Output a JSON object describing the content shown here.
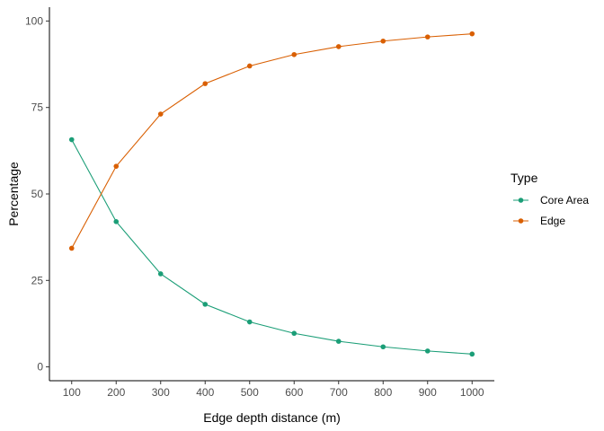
{
  "chart_data": {
    "type": "line",
    "xlabel": "Edge depth distance (m)",
    "ylabel": "Percentage",
    "x": [
      100,
      200,
      300,
      400,
      500,
      600,
      700,
      800,
      900,
      1000
    ],
    "xticks": [
      100,
      200,
      300,
      400,
      500,
      600,
      700,
      800,
      900,
      1000
    ],
    "yticks": [
      0,
      25,
      50,
      75,
      100
    ],
    "xlim": [
      50,
      1050
    ],
    "ylim": [
      -4,
      104
    ],
    "grid": false,
    "legend": {
      "title": "Type",
      "placement": "right"
    },
    "series": [
      {
        "name": "Core Area",
        "color": "#1b9e77",
        "values": [
          65.7,
          42.0,
          26.9,
          18.1,
          13.0,
          9.7,
          7.4,
          5.8,
          4.6,
          3.7
        ]
      },
      {
        "name": "Edge",
        "color": "#d95f02",
        "values": [
          34.3,
          58.0,
          73.1,
          81.9,
          87.0,
          90.3,
          92.6,
          94.2,
          95.4,
          96.3
        ]
      }
    ]
  }
}
